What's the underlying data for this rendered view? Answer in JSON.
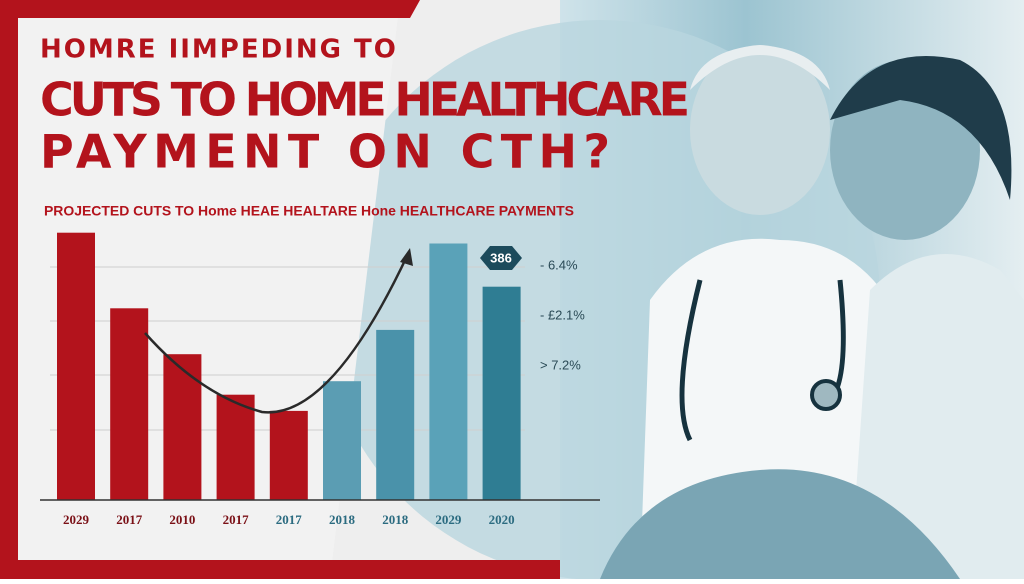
{
  "chart_data": {
    "type": "bar",
    "title_lines": [
      "HOMRE IIMPEDING TO",
      "CUTS TO HOME HEALTHCARE",
      "PAYMENT ON CTH?"
    ],
    "subtitle": "PROJECTED CUTS TO Home HEAE HEALTARE Hone HEALTHCARE PAYMENTS",
    "categories": [
      "2029",
      "2017",
      "2010",
      "2017",
      "2017",
      "2018",
      "2018",
      "2029",
      "2020"
    ],
    "values": [
      99,
      71,
      54,
      39,
      33,
      44,
      63,
      95,
      79
    ],
    "colors": [
      "#b3131c",
      "#b3131c",
      "#b3131c",
      "#b3131c",
      "#b3131c",
      "#5b9db3",
      "#4a92aa",
      "#5aa2b8",
      "#2f7d93"
    ],
    "ylim": [
      0,
      100
    ],
    "badge": "386",
    "annotations": [
      "- 6.4%",
      "- £2.1%",
      ">  7.2%"
    ]
  }
}
